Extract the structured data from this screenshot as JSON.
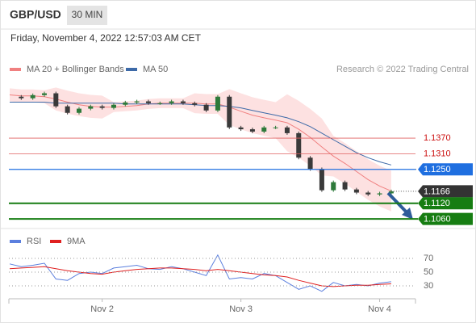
{
  "header": {
    "symbol": "GBP/USD",
    "interval": "30 MIN",
    "timestamp": "Friday, November 4, 2022 12:57:03 AM CET"
  },
  "chart_data": [
    {
      "type": "line",
      "source": "Research © 2022 Trading Central",
      "ylim": [
        1.102,
        1.157
      ],
      "price": {
        "up_color": "#2d7a3a",
        "down_color": "#3a3a3a",
        "values": [
          1.1529,
          1.1523,
          1.1535,
          1.1542,
          1.1492,
          1.1467,
          1.1483,
          1.1492,
          1.1486,
          1.1498,
          1.1507,
          1.1511,
          1.1504,
          1.1504,
          1.1511,
          1.1504,
          1.1498,
          1.1476,
          1.1529,
          1.1411,
          1.1404,
          1.1395,
          1.1411,
          1.1411,
          1.1389,
          1.1295,
          1.1251,
          1.117,
          1.1201,
          1.1173,
          1.1161,
          1.1154,
          1.1158,
          1.1166
        ]
      },
      "series": [
        {
          "name": "MA 20 + Bollinger Bands",
          "color": "#f08080",
          "band_color": "#fcd9d9",
          "values": [
            1.1536,
            1.1532,
            1.1532,
            1.1529,
            1.152,
            1.1508,
            1.1498,
            1.1492,
            1.1489,
            1.1489,
            1.1492,
            1.1495,
            1.1501,
            1.1504,
            1.1504,
            1.1504,
            1.1504,
            1.1501,
            1.1501,
            1.1489,
            1.1473,
            1.1458,
            1.1448,
            1.1439,
            1.1429,
            1.1404,
            1.1373,
            1.1336,
            1.1301,
            1.1273,
            1.1242,
            1.1211,
            1.1186,
            1.1167
          ],
          "upper": [
            1.1561,
            1.1557,
            1.1557,
            1.1554,
            1.1564,
            1.1552,
            1.1542,
            1.1536,
            1.1533,
            1.1508,
            1.1511,
            1.1514,
            1.152,
            1.1523,
            1.1523,
            1.1523,
            1.1542,
            1.1539,
            1.1539,
            1.1558,
            1.1542,
            1.1527,
            1.1517,
            1.1508,
            1.1538,
            1.1513,
            1.1482,
            1.1445,
            1.1379,
            1.1351,
            1.132,
            1.1289,
            1.1264,
            1.1245
          ],
          "lower": [
            1.1511,
            1.1507,
            1.1507,
            1.1504,
            1.1476,
            1.1464,
            1.1454,
            1.1448,
            1.1445,
            1.147,
            1.1473,
            1.1476,
            1.1482,
            1.1485,
            1.1485,
            1.1485,
            1.1466,
            1.1463,
            1.1463,
            1.142,
            1.1404,
            1.1389,
            1.1379,
            1.137,
            1.132,
            1.1295,
            1.1264,
            1.1227,
            1.1223,
            1.1195,
            1.1164,
            1.1133,
            1.1108,
            1.1089
          ]
        },
        {
          "name": "MA 50",
          "color": "#3d6aa8",
          "values": [
            1.1508,
            1.1508,
            1.1508,
            1.1508,
            1.1504,
            1.1504,
            1.1504,
            1.1504,
            1.1504,
            1.1504,
            1.1501,
            1.1501,
            1.1501,
            1.1501,
            1.1501,
            1.1501,
            1.1498,
            1.1495,
            1.1495,
            1.1492,
            1.1486,
            1.1476,
            1.1467,
            1.1458,
            1.1448,
            1.1433,
            1.1414,
            1.1389,
            1.1364,
            1.1339,
            1.1314,
            1.1295,
            1.1279,
            1.1267
          ]
        }
      ],
      "levels": [
        {
          "value": 1.137,
          "label": "1.1370",
          "color": "#e06060",
          "badge": false
        },
        {
          "value": 1.131,
          "label": "1.1310",
          "color": "#e06060",
          "badge": false
        },
        {
          "value": 1.125,
          "label": "1.1250",
          "color": "#1f6fe0",
          "badge": true
        },
        {
          "value": 1.1166,
          "label": "1.1166",
          "color": "#333333",
          "badge": true,
          "dotted": true
        },
        {
          "value": 1.112,
          "label": "1.1120",
          "color": "#167d12",
          "badge": true
        },
        {
          "value": 1.106,
          "label": "1.1060",
          "color": "#167d12",
          "badge": true
        }
      ]
    },
    {
      "type": "line",
      "categories": [
        null,
        null,
        null,
        null,
        null,
        null,
        null,
        null,
        "Nov 2",
        null,
        null,
        null,
        null,
        null,
        null,
        null,
        null,
        null,
        null,
        null,
        "Nov 3",
        null,
        null,
        null,
        null,
        null,
        null,
        null,
        null,
        null,
        null,
        null,
        "Nov 4",
        null,
        null,
        null
      ],
      "ylim": [
        13,
        82
      ],
      "yticks": [
        30,
        50,
        70
      ],
      "grid": true,
      "series": [
        {
          "name": "RSI",
          "color": "#5b7fde",
          "values": [
            62,
            58,
            60,
            63,
            40,
            38,
            48,
            50,
            48,
            56,
            58,
            60,
            55,
            54,
            58,
            55,
            50,
            45,
            75,
            40,
            42,
            40,
            48,
            45,
            35,
            25,
            30,
            22,
            35,
            30,
            32,
            30,
            34,
            36,
            null,
            null
          ]
        },
        {
          "name": "9MA",
          "color": "#e02020",
          "values": [
            55,
            56,
            57,
            58,
            55,
            52,
            50,
            48,
            47,
            50,
            52,
            54,
            55,
            56,
            56,
            55,
            54,
            52,
            54,
            52,
            50,
            48,
            46,
            45,
            43,
            38,
            34,
            30,
            29,
            30,
            31,
            31,
            32,
            33,
            null,
            null
          ]
        }
      ]
    }
  ]
}
